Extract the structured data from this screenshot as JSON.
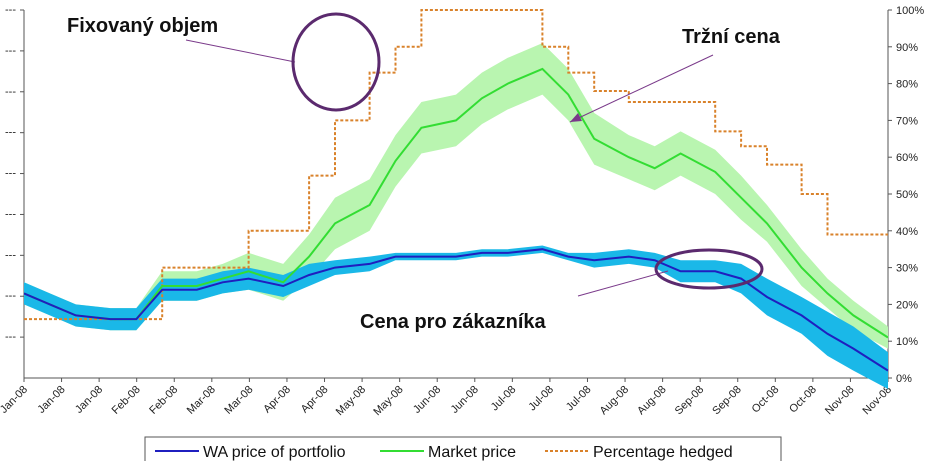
{
  "chart_data": {
    "type": "line",
    "x_tick_labels": [
      "Jan-08",
      "Jan-08",
      "Jan-08",
      "Feb-08",
      "Feb-08",
      "Mar-08",
      "Mar-08",
      "Apr-08",
      "Apr-08",
      "May-08",
      "May-08",
      "Jun-08",
      "Jun-08",
      "Jul-08",
      "Jul-08",
      "Jul-08",
      "Aug-08",
      "Aug-08",
      "Sep-08",
      "Sep-08",
      "Oct-08",
      "Oct-08",
      "Nov-08",
      "Nov-08"
    ],
    "y2_ticks": [
      "0%",
      "10%",
      "20%",
      "30%",
      "40%",
      "50%",
      "60%",
      "70%",
      "80%",
      "90%",
      "100%"
    ],
    "y2lim": [
      0,
      100
    ],
    "y1_ticks_count": 9,
    "y1lim": [
      0,
      100
    ],
    "grid": false,
    "legend_position": "bottom",
    "colors": {
      "wa_price": "#1f1fbf",
      "wa_band": "#1ab8e8",
      "market_price": "#33dd33",
      "market_band": "#b9f5b0",
      "percentage_hedged": "#d9822b"
    },
    "x_index": [
      0,
      3,
      6,
      10,
      13,
      16,
      20,
      23,
      26,
      30,
      33,
      36,
      40,
      43,
      46,
      50,
      53,
      56,
      60,
      63,
      66,
      70,
      73,
      76,
      80,
      83,
      86,
      90,
      93,
      96,
      100
    ],
    "series": [
      {
        "name": "WA price of portfolio",
        "axis": "left",
        "values": [
          23,
          20,
          17,
          16,
          16,
          24,
          24,
          26,
          27,
          25,
          28,
          30,
          31,
          33,
          33,
          33,
          34,
          34,
          35,
          33,
          32,
          33,
          32,
          29,
          29,
          27,
          22,
          17,
          12,
          8,
          2
        ],
        "band_half_width": [
          3,
          3,
          3,
          3,
          3,
          3,
          3,
          3,
          3,
          3,
          3,
          2,
          2,
          1,
          1,
          1,
          1,
          1,
          1,
          1,
          2,
          2,
          2,
          3,
          3,
          4,
          5,
          5,
          6,
          6,
          5
        ]
      },
      {
        "name": "Market price",
        "axis": "left",
        "values": [
          23,
          20,
          17,
          16,
          16,
          25,
          25,
          27,
          29,
          26,
          33,
          42,
          47,
          59,
          68,
          70,
          76,
          80,
          84,
          77,
          65,
          60,
          57,
          61,
          56,
          49,
          42,
          30,
          23,
          17,
          11
        ],
        "band_half_width": [
          3,
          3,
          3,
          3,
          3,
          4,
          4,
          4,
          5,
          5,
          6,
          7,
          7,
          7,
          7,
          7,
          7,
          7,
          7,
          7,
          7,
          6,
          6,
          6,
          6,
          6,
          5,
          5,
          4,
          4,
          3
        ]
      },
      {
        "name": "Percentage hedged",
        "axis": "right",
        "values": [
          16,
          16,
          16,
          16,
          16,
          30,
          30,
          30,
          40,
          40,
          55,
          70,
          83,
          90,
          100,
          100,
          100,
          100,
          90,
          83,
          78,
          75,
          75,
          75,
          67,
          63,
          58,
          50,
          39,
          39,
          39
        ]
      }
    ],
    "annotations": [
      {
        "text": "Fixovaný objem"
      },
      {
        "text": "Tržní cena"
      },
      {
        "text": "Cena pro zákazníka"
      }
    ]
  }
}
